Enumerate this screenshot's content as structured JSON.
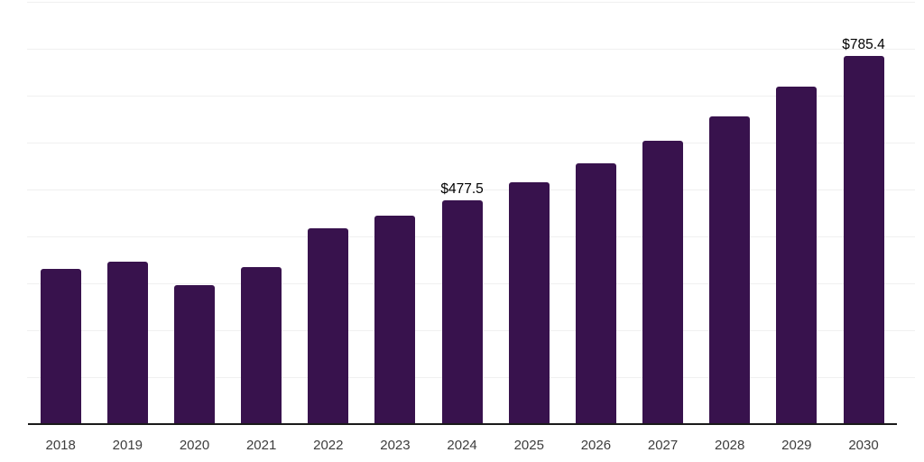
{
  "chart_data": {
    "type": "bar",
    "title": "",
    "xlabel": "",
    "ylabel": "",
    "categories": [
      "2018",
      "2019",
      "2020",
      "2021",
      "2022",
      "2023",
      "2024",
      "2025",
      "2026",
      "2027",
      "2028",
      "2029",
      "2030"
    ],
    "values": [
      330,
      347,
      297,
      335,
      417,
      445,
      477.5,
      515,
      556,
      604,
      656,
      720,
      785.4
    ],
    "ylim": [
      0,
      900
    ],
    "gridline_step": 100,
    "grid": "horizontal",
    "legend_position": "none",
    "annotations": [
      {
        "category": "2024",
        "text": "$477.5"
      },
      {
        "category": "2030",
        "text": "$785.4"
      }
    ],
    "colors": {
      "bar": "#38124D",
      "gridline": "#f0f0f0",
      "axis_line": "#1a1a1a",
      "tick_label": "#3d3d3d",
      "value_label": "#000000",
      "background": "#ffffff"
    }
  }
}
